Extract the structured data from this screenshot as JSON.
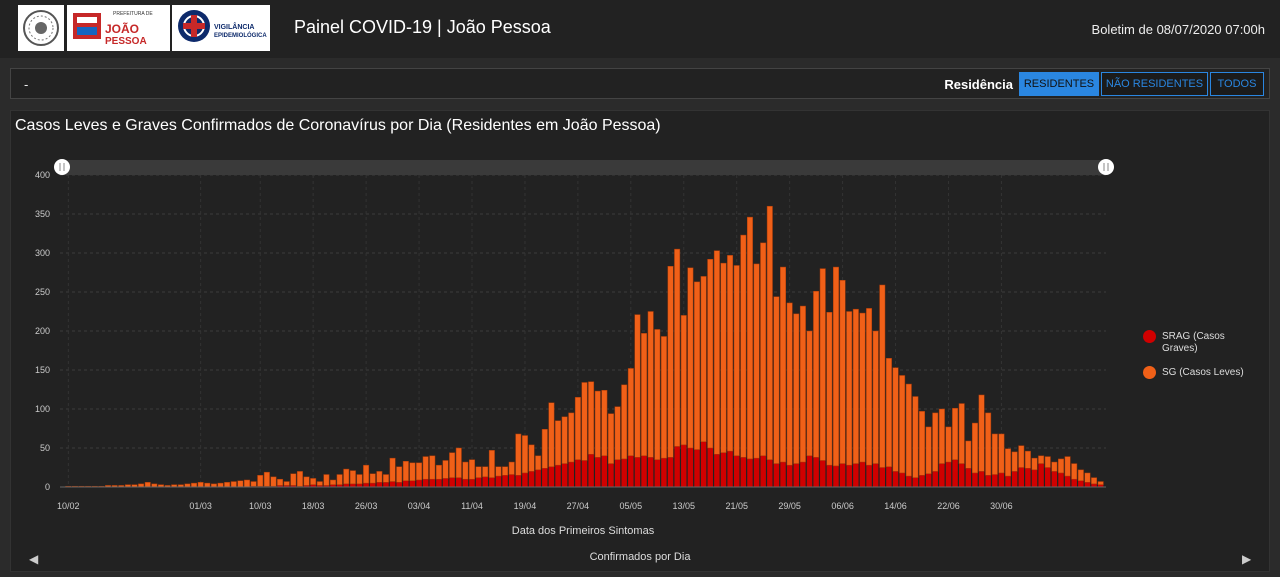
{
  "header": {
    "title": "Painel COVID-19 | João Pessoa",
    "bulletin": "Boletim de 08/07/2020 07:00h",
    "logo_prefeitura": "JOÃO PESSOA",
    "logo_prefeitura_small": "PREFEITURA DE",
    "logo_vigilancia": "VIGILÂNCIA EPIDEMIOLÓGICA"
  },
  "filter": {
    "dash": "-",
    "label": "Residência",
    "buttons": [
      "RESIDENTES",
      "NÃO RESIDENTES",
      "TODOS"
    ],
    "selected": "RESIDENTES"
  },
  "footer": {
    "title": "Confirmados por Dia"
  },
  "colors": {
    "srag": "#d00000",
    "sg": "#f06018",
    "accent": "#2a86e0"
  },
  "chart_data": {
    "type": "bar",
    "stacked": true,
    "title": "Casos Leves e Graves Confirmados de Coronavírus por Dia (Residentes em João Pessoa)",
    "xlabel": "Data dos Primeiros Sintomas",
    "ylabel": "",
    "ylim": [
      0,
      400
    ],
    "yticks": [
      0,
      50,
      100,
      150,
      200,
      250,
      300,
      350,
      400
    ],
    "x_start": "10/02/2020",
    "x_ticks": [
      "10/02",
      "01/03",
      "10/03",
      "18/03",
      "26/03",
      "03/04",
      "11/04",
      "19/04",
      "27/04",
      "05/05",
      "13/05",
      "21/05",
      "29/05",
      "06/06",
      "14/06",
      "22/06",
      "30/06"
    ],
    "legend": "right",
    "grid": true,
    "series": [
      {
        "name": "SRAG (Casos Graves)",
        "color": "#d00000",
        "values": [
          0,
          0,
          0,
          0,
          0,
          0,
          0,
          0,
          0,
          0,
          0,
          0,
          0,
          0,
          0,
          0,
          0,
          0,
          0,
          0,
          0,
          0,
          0,
          0,
          0,
          0,
          0,
          0,
          1,
          1,
          1,
          1,
          2,
          2,
          2,
          1,
          2,
          3,
          2,
          2,
          3,
          3,
          4,
          4,
          4,
          5,
          5,
          6,
          6,
          7,
          6,
          8,
          8,
          9,
          10,
          10,
          10,
          11,
          12,
          12,
          10,
          10,
          12,
          13,
          12,
          14,
          15,
          16,
          15,
          18,
          20,
          22,
          24,
          26,
          28,
          30,
          32,
          35,
          34,
          42,
          38,
          40,
          30,
          35,
          36,
          40,
          38,
          40,
          38,
          35,
          37,
          38,
          52,
          54,
          50,
          48,
          58,
          50,
          42,
          44,
          46,
          40,
          38,
          36,
          37,
          40,
          35,
          30,
          32,
          28,
          30,
          32,
          40,
          38,
          34,
          28,
          27,
          30,
          28,
          30,
          32,
          28,
          30,
          25,
          26,
          20,
          18,
          14,
          12,
          15,
          17,
          20,
          30,
          32,
          35,
          30,
          24,
          18,
          20,
          15,
          16,
          18,
          14,
          20,
          25,
          24,
          22,
          30,
          25,
          20,
          18,
          14,
          10,
          8,
          6,
          4,
          3
        ]
      },
      {
        "name": "SG (Casos Leves)",
        "color": "#f06018",
        "values": [
          1,
          1,
          1,
          1,
          1,
          1,
          2,
          2,
          2,
          3,
          3,
          4,
          6,
          4,
          3,
          2,
          3,
          3,
          4,
          5,
          6,
          5,
          4,
          5,
          6,
          7,
          8,
          9,
          6,
          14,
          18,
          12,
          8,
          5,
          15,
          19,
          11,
          8,
          5,
          14,
          6,
          13,
          19,
          17,
          12,
          23,
          12,
          14,
          10,
          30,
          20,
          25,
          23,
          22,
          29,
          30,
          18,
          23,
          32,
          38,
          22,
          25,
          14,
          13,
          35,
          12,
          11,
          16,
          53,
          48,
          34,
          18,
          50,
          82,
          57,
          60,
          63,
          80,
          100,
          93,
          85,
          84,
          64,
          68,
          95,
          112,
          183,
          157,
          187,
          167,
          156,
          245,
          253,
          166,
          231,
          215,
          212,
          242,
          261,
          243,
          251,
          244,
          285,
          310,
          249,
          273,
          325,
          214,
          250,
          208,
          192,
          200,
          160,
          213,
          246,
          196,
          255,
          235,
          197,
          198,
          191,
          201,
          170,
          234,
          139,
          133,
          125,
          118,
          104,
          82,
          60,
          75,
          70,
          45,
          66,
          77,
          35,
          64,
          98,
          80,
          52,
          50,
          35,
          25,
          28,
          22,
          15,
          10,
          14,
          12,
          18,
          25,
          20,
          14,
          12,
          8,
          4
        ]
      }
    ]
  }
}
